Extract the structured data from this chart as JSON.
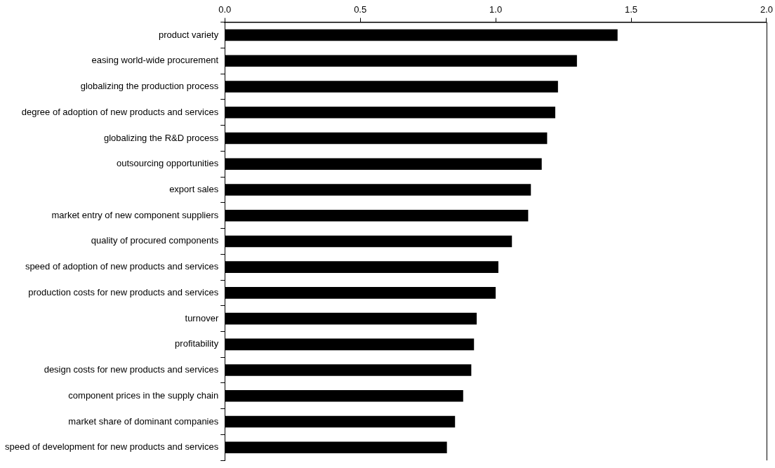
{
  "chart_data": {
    "type": "bar",
    "orientation": "horizontal",
    "categories": [
      "product variety",
      "easing world-wide procurement",
      "globalizing the production process",
      "degree of adoption of new products and services",
      "globalizing the R&D process",
      "outsourcing opportunities",
      "export sales",
      "market entry of new component suppliers",
      "quality of procured components",
      "speed of adoption of new products and services",
      "production costs for new products and services",
      "turnover",
      "profitability",
      "design costs for new products and services",
      "component prices in the supply chain",
      "market share of dominant companies",
      "speed of development for new products and services"
    ],
    "values": [
      1.45,
      1.3,
      1.23,
      1.22,
      1.19,
      1.17,
      1.13,
      1.12,
      1.06,
      1.01,
      1.0,
      0.93,
      0.92,
      0.91,
      0.88,
      0.85,
      0.82
    ],
    "color": "#000000",
    "xlim": [
      0,
      2
    ],
    "xticks": [
      {
        "value": 0,
        "label": "0.0"
      },
      {
        "value": 0.5,
        "label": "0.5"
      },
      {
        "value": 1,
        "label": "1.0"
      },
      {
        "value": 1.5,
        "label": "1.5"
      },
      {
        "value": 2,
        "label": "2.0"
      }
    ],
    "grid": false,
    "legend": false
  }
}
